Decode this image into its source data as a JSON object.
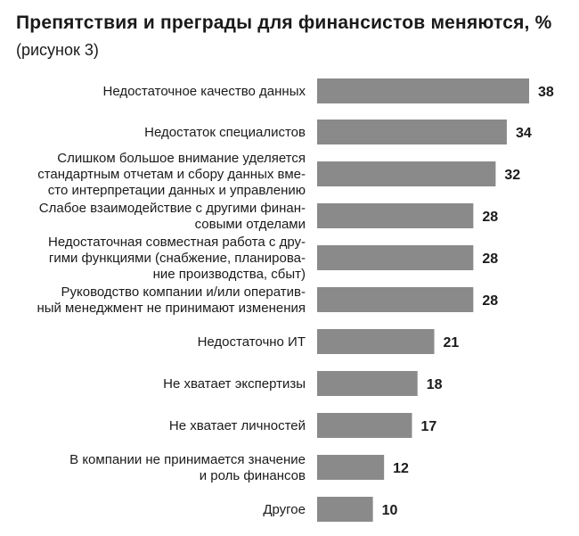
{
  "title": "Препятствия и преграды для финансистов меняются, %",
  "subtitle": "(рисунок 3)",
  "colors": {
    "bar": "#8a8a8a",
    "text": "#1a1a1a"
  },
  "chart_data": {
    "type": "bar",
    "orientation": "horizontal",
    "title": "Препятствия и преграды для финансистов меняются, %",
    "subtitle": "(рисунок 3)",
    "categories": [
      [
        "Недостаточное качество данных"
      ],
      [
        "Недостаток специалистов"
      ],
      [
        "Слишком большое внимание уделяется",
        "стандартным отчетам и сбору данных вме-",
        "сто интерпретации данных и управлению"
      ],
      [
        "Слабое взаимодействие с другими финан-",
        "совыми отделами"
      ],
      [
        "Недостаточная совместная работа с дру-",
        "гими функциями (снабжение, планирова-",
        "ние производства, сбыт)"
      ],
      [
        "Руководство компании и/или оператив-",
        "ный менеджмент не принимают изменения"
      ],
      [
        "Недостаточно ИТ"
      ],
      [
        "Не хватает экспертизы"
      ],
      [
        "Не хватает личностей"
      ],
      [
        "В компании не принимается значение",
        "и роль финансов"
      ],
      [
        "Другое"
      ]
    ],
    "values": [
      38,
      34,
      32,
      28,
      28,
      28,
      21,
      18,
      17,
      12,
      10
    ],
    "xlim": [
      0,
      38
    ],
    "grid": false,
    "legend": "none",
    "data_labels": true
  }
}
